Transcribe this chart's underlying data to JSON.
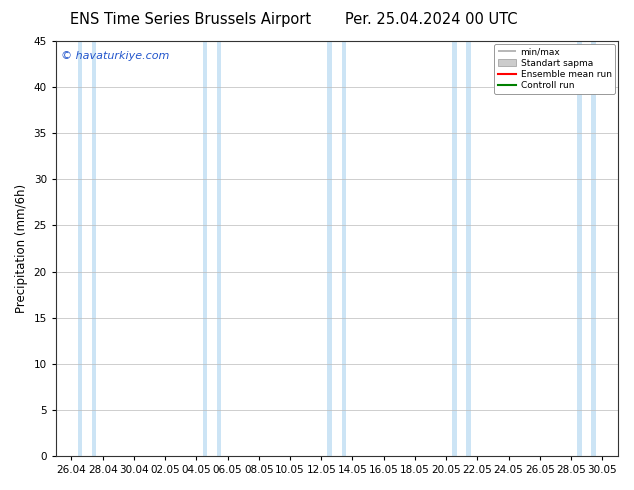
{
  "title_left": "ENS Time Series Brussels Airport",
  "title_right": "Per. 25.04.2024 00 UTC",
  "ylabel": "Precipitation (mm/6h)",
  "ylim": [
    0,
    45
  ],
  "yticks": [
    0,
    5,
    10,
    15,
    20,
    25,
    30,
    35,
    40,
    45
  ],
  "xtick_labels": [
    "26.04",
    "28.04",
    "30.04",
    "02.05",
    "04.05",
    "06.05",
    "08.05",
    "10.05",
    "12.05",
    "14.05",
    "16.05",
    "18.05",
    "20.05",
    "22.05",
    "24.05",
    "26.05",
    "28.05",
    "30.05"
  ],
  "watermark": "© havaturkiye.com",
  "watermark_color": "#2255cc",
  "background_color": "#ffffff",
  "plot_bg_color": "#ffffff",
  "band_color": "#cce4f5",
  "legend_labels": [
    "min/max",
    "Standart sapma",
    "Ensemble mean run",
    "Controll run"
  ],
  "legend_line_colors": [
    "#aaaaaa",
    "#cccccc",
    "#ff0000",
    "#008000"
  ],
  "title_fontsize": 10.5,
  "axis_label_fontsize": 8.5,
  "tick_fontsize": 7.5,
  "grid_color": "#bbbbbb",
  "grid_linewidth": 0.5
}
